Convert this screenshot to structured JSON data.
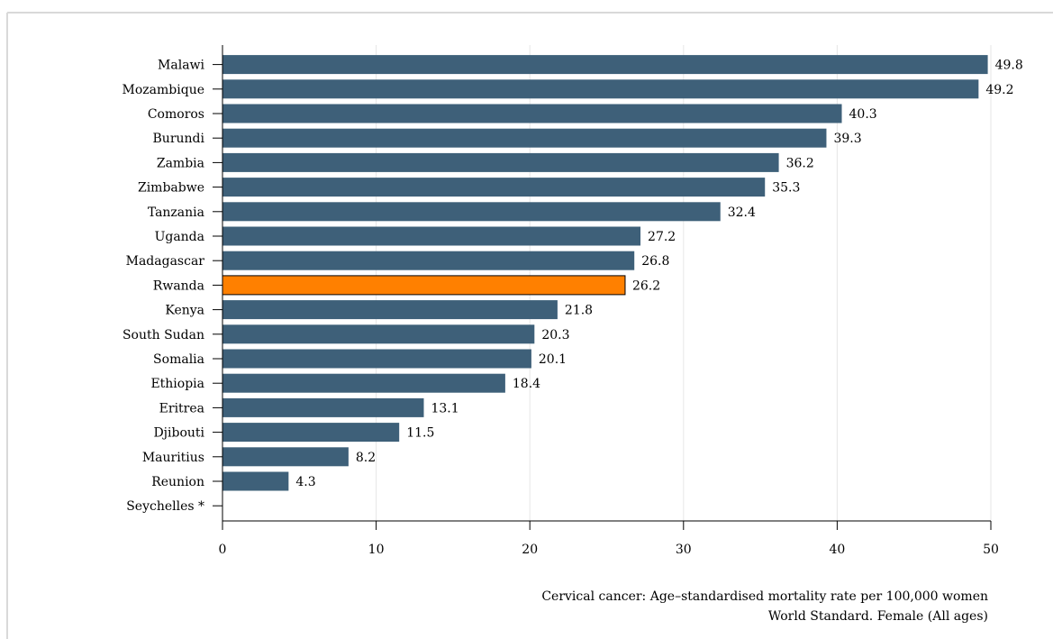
{
  "colors": {
    "bar": "#3e6079",
    "highlight": "#ff8000",
    "highlight_stroke": "#000000",
    "grid": "#e6e6e6",
    "frame": "#d9d9d9"
  },
  "chart_data": {
    "type": "bar",
    "orientation": "horizontal",
    "title": "",
    "categories": [
      "Malawi",
      "Mozambique",
      "Comoros",
      "Burundi",
      "Zambia",
      "Zimbabwe",
      "Tanzania",
      "Uganda",
      "Madagascar",
      "Rwanda",
      "Kenya",
      "South Sudan",
      "Somalia",
      "Ethiopia",
      "Eritrea",
      "Djibouti",
      "Mauritius",
      "Reunion",
      "Seychelles *"
    ],
    "values": [
      49.8,
      49.2,
      40.3,
      39.3,
      36.2,
      35.3,
      32.4,
      27.2,
      26.8,
      26.2,
      21.8,
      20.3,
      20.1,
      18.4,
      13.1,
      11.5,
      8.2,
      4.3,
      null
    ],
    "value_labels": [
      "49.8",
      "49.2",
      "40.3",
      "39.3",
      "36.2",
      "35.3",
      "32.4",
      "27.2",
      "26.8",
      "26.2",
      "21.8",
      "20.3",
      "20.1",
      "18.4",
      "13.1",
      "11.5",
      "8.2",
      "4.3",
      ""
    ],
    "highlight": "Rwanda",
    "xlim": [
      0,
      50
    ],
    "xticks": [
      0,
      10,
      20,
      30,
      40,
      50
    ],
    "grid": true,
    "xlabel_lines": [
      "Cervical cancer: Age–standardised mortality rate per 100,000 women",
      "World Standard. Female (All ages)"
    ]
  }
}
